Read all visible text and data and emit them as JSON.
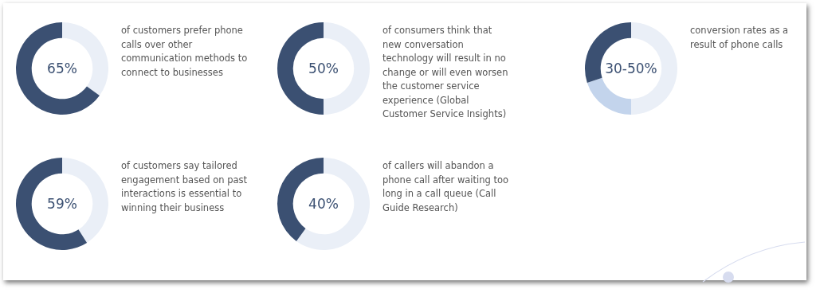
{
  "chart_data": [
    {
      "type": "donut",
      "title": "65%",
      "categories": [
        null,
        null
      ],
      "values": [
        35,
        65
      ],
      "colors": [
        "#eaeff7",
        "#3b5072"
      ],
      "annotations": [
        "of customers prefer phone calls over other communication methods to connect to businesses"
      ]
    },
    {
      "type": "donut",
      "title": "50%",
      "categories": [
        null,
        null
      ],
      "values": [
        50,
        50
      ],
      "colors": [
        "#eaeff7",
        "#3b5072"
      ],
      "annotations": [
        "of consumers think that new conversation technology will result in no change or will even worsen the customer service experience (Global Customer Service Insights)"
      ]
    },
    {
      "type": "donut",
      "title": "30-50%",
      "categories": [
        null,
        null,
        null
      ],
      "values": [
        50,
        20,
        30
      ],
      "colors": [
        "#eaeff7",
        "#c3d4ec",
        "#3b5072"
      ],
      "annotations": [
        "conversion rates as a result of phone calls"
      ]
    },
    {
      "type": "donut",
      "title": "59%",
      "categories": [
        null,
        null
      ],
      "values": [
        41,
        59
      ],
      "colors": [
        "#eaeff7",
        "#3b5072"
      ],
      "annotations": [
        "of customers say tailored engagement based on past interactions is essential to winning their business"
      ]
    },
    {
      "type": "donut",
      "title": "40%",
      "categories": [
        null,
        null
      ],
      "values": [
        60,
        40
      ],
      "colors": [
        "#eaeff7",
        "#3b5072"
      ],
      "annotations": [
        "of callers will abandon a phone call after waiting too long in a call queue (Call Guide Research)"
      ]
    }
  ]
}
